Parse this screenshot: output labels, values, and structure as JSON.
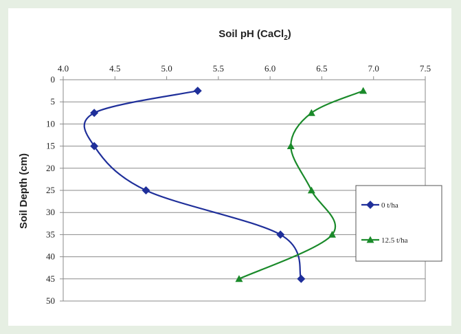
{
  "chart_data": {
    "type": "line",
    "title": "",
    "x_axis": {
      "label_main": "Soil pH (CaCl",
      "label_sub": "2",
      "label_end": ")",
      "position": "top",
      "min": 4.0,
      "max": 7.5,
      "ticks": [
        "4.0",
        "4.5",
        "5.0",
        "5.5",
        "6.0",
        "6.5",
        "7.0",
        "7.5"
      ]
    },
    "y_axis": {
      "label": "Soil Depth (cm)",
      "min": 0,
      "max": 50,
      "reversed": true,
      "ticks": [
        "0",
        "5",
        "10",
        "15",
        "20",
        "25",
        "30",
        "35",
        "40",
        "45",
        "50"
      ]
    },
    "grid": "horizontal",
    "legend_position": "right",
    "series": [
      {
        "name": "0 t/ha",
        "color": "#1f2f9a",
        "marker": "diamond",
        "points": [
          [
            5.3,
            2.5
          ],
          [
            4.3,
            7.5
          ],
          [
            4.3,
            15
          ],
          [
            4.8,
            25
          ],
          [
            6.1,
            35
          ],
          [
            6.3,
            45
          ]
        ]
      },
      {
        "name": "12.5 t/ha",
        "color": "#1a8a2a",
        "marker": "triangle",
        "points": [
          [
            6.9,
            2.5
          ],
          [
            6.4,
            7.5
          ],
          [
            6.2,
            15
          ],
          [
            6.4,
            25
          ],
          [
            6.6,
            35
          ],
          [
            5.7,
            45
          ]
        ]
      }
    ]
  }
}
